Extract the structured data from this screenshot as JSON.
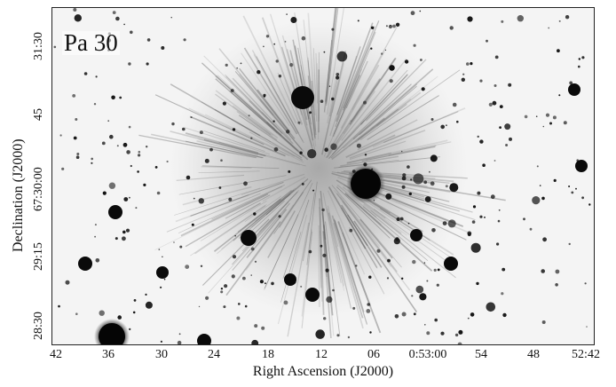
{
  "image": {
    "panel_label": "Pa 30",
    "x_axis_label": "Right Ascension (J2000)",
    "y_axis_label": "Declination (J2000)",
    "x_ticks": [
      "42",
      "36",
      "30",
      "24",
      "18",
      "12",
      "06",
      "0:53:00",
      "54",
      "48",
      "52:42"
    ],
    "y_ticks": [
      "31:30",
      "45",
      "67:30:00",
      "29:15",
      "28:30"
    ],
    "colors": {
      "background": "#f4f4f4",
      "stars": "#111111",
      "nebula": "#555555",
      "frame": "#222222"
    },
    "description_icons": [
      "star-field",
      "nebula-filaments"
    ]
  }
}
